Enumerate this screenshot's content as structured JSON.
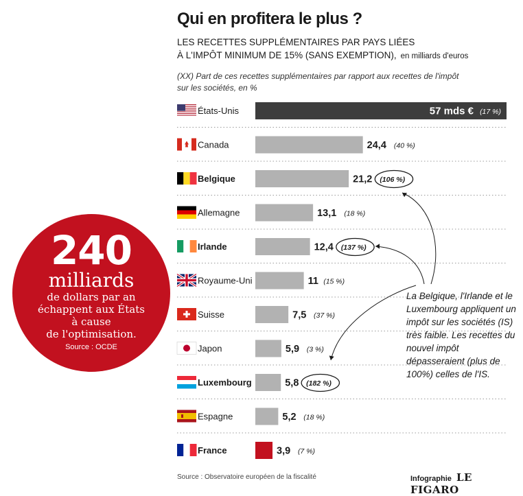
{
  "header": {
    "title": "Qui en profitera le plus ?",
    "subtitle_line1": "LES RECETTES SUPPLÉMENTAIRES PAR PAYS LIÉES",
    "subtitle_line2": "À L'IMPÔT MINIMUM DE 15% (SANS EXEMPTION),",
    "unit": "en milliards d'euros",
    "note": "(XX) Part de ces recettes supplémentaires par rapport aux recettes de l'impôt sur les sociétés, en %"
  },
  "bubble": {
    "number": "240",
    "word": "milliards",
    "line1": "de dollars par an",
    "line2": "échappent aux États",
    "line3": "à cause",
    "line4": "de l'optimisation.",
    "source": "Source : OCDE"
  },
  "callout": {
    "text": "La Belgique, l'Irlande et le Luxembourg appliquent un impôt sur les sociétés (IS) très faible. Les recettes du nouvel impôt dépasseraient (plus de 100%) celles de l'IS."
  },
  "footer": {
    "source": "Source : Observatoire européen de la fiscalité",
    "credit": "Infographie",
    "brand": "LE FIGARO"
  },
  "colors": {
    "dark_bar": "#3d3d3d",
    "gray_bar": "#b2b2b2",
    "red_bar": "#c2111f",
    "bubble": "#c2111f"
  },
  "chart_data": {
    "type": "bar",
    "orientation": "horizontal",
    "categories": [
      "États-Unis",
      "Canada",
      "Belgique",
      "Allemagne",
      "Irlande",
      "Royaume-Uni",
      "Suisse",
      "Japon",
      "Luxembourg",
      "Espagne",
      "France"
    ],
    "values": [
      57,
      24.4,
      21.2,
      13.1,
      12.4,
      11,
      7.5,
      5.9,
      5.8,
      5.2,
      3.9
    ],
    "value_labels": [
      "57 mds €",
      "24,4",
      "21,2",
      "13,1",
      "12,4",
      "11",
      "7,5",
      "5,9",
      "5,8",
      "5,2",
      "3,9"
    ],
    "share_labels": [
      "(17 %)",
      "(40 %)",
      "(106 %)",
      "(18 %)",
      "(137 %)",
      "(15 %)",
      "(37 %)",
      "(3 %)",
      "(182 %)",
      "(18 %)",
      "(7 %)"
    ],
    "highlighted": [
      false,
      false,
      true,
      false,
      true,
      false,
      false,
      false,
      true,
      false,
      true
    ],
    "flags": [
      "flag-us-icon",
      "flag-ca-icon",
      "flag-be-icon",
      "flag-de-icon",
      "flag-ie-icon",
      "flag-gb-icon",
      "flag-ch-icon",
      "flag-jp-icon",
      "flag-lu-icon",
      "flag-es-icon",
      "flag-fr-icon"
    ]
  }
}
